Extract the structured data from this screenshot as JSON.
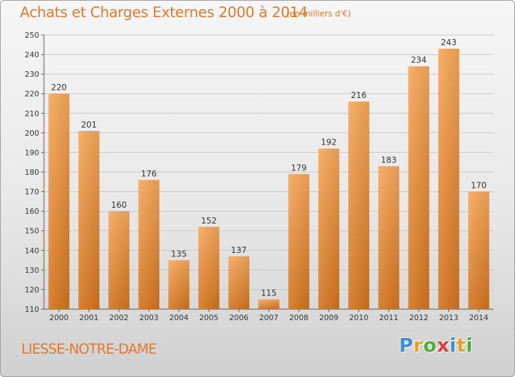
{
  "header": {
    "title": "Achats et Charges Externes 2000 à 2014",
    "unit": "(en milliers d'€)"
  },
  "footer": {
    "commune": "LIESSE-NOTRE-DAME",
    "logo_letters": [
      {
        "char": "P",
        "color": "#3a8fd6"
      },
      {
        "char": "r",
        "color": "#e8a020"
      },
      {
        "char": "o",
        "color": "#4caf3a"
      },
      {
        "char": "x",
        "color": "#e53935"
      },
      {
        "char": "i",
        "color": "#3a8fd6"
      },
      {
        "char": "t",
        "color": "#e8a020"
      },
      {
        "char": "i",
        "color": "#4caf3a"
      }
    ]
  },
  "colors": {
    "bar_top": "#f7a85a",
    "bar_bottom": "#d4741e",
    "grid": "#c8c8c8",
    "text": "#333333",
    "accent": "#e07a2c"
  },
  "chart_data": {
    "type": "bar",
    "title": "Achats et Charges Externes 2000 à 2014",
    "subtitle": "(en milliers d'€)",
    "categories": [
      "2000",
      "2001",
      "2002",
      "2003",
      "2004",
      "2005",
      "2006",
      "2007",
      "2008",
      "2009",
      "2010",
      "2011",
      "2012",
      "2013",
      "2014"
    ],
    "values": [
      220,
      201,
      160,
      176,
      135,
      152,
      137,
      115,
      179,
      192,
      216,
      183,
      234,
      243,
      170
    ],
    "ylim": [
      110,
      250
    ],
    "yticks": [
      110,
      120,
      130,
      140,
      150,
      160,
      170,
      180,
      190,
      200,
      210,
      220,
      230,
      240,
      250
    ],
    "grid": true,
    "data_labels": true
  }
}
